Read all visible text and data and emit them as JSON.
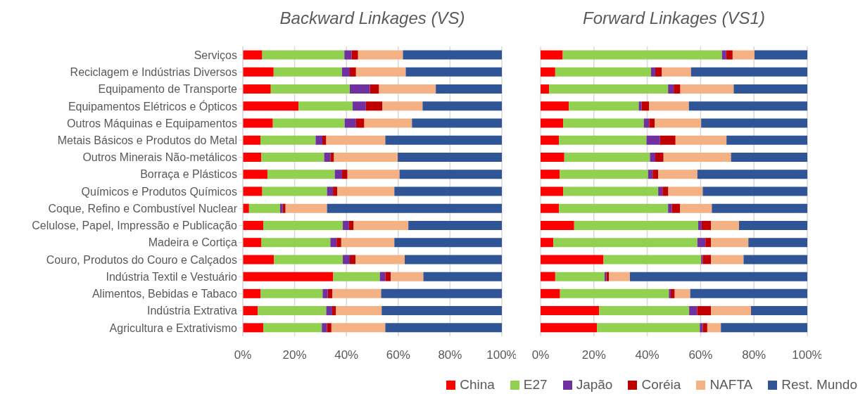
{
  "chart_data": [
    {
      "type": "bar",
      "orientation": "horizontal",
      "stacked": true,
      "title": "Backward Linkages (VS)",
      "categories": [
        "Serviços",
        "Reciclagem e Indústrias Diversos",
        "Equipamento de Transporte",
        "Equipamentos Elétricos e Ópticos",
        "Outros Máquinas e Equipamentos",
        "Metais Básicos e Produtos do Metal",
        "Outros Minerais Não-metálicos",
        "Borraça e Plásticos",
        "Químicos e Produtos Químicos",
        "Coque, Refino e Combustível Nuclear",
        "Celulose, Papel, Impressão e Publicação",
        "Madeira e Cortiça",
        "Couro, Produtos do Couro e Calçados",
        "Indústria Textil e Vestuário",
        "Alimentos, Bebidas e Tabaco",
        "Indústria Extrativa",
        "Agricultura e Extrativismo"
      ],
      "series": [
        {
          "name": "China",
          "color": "#ff0000",
          "values": [
            7.5,
            11.9,
            10.8,
            21.5,
            11.6,
            6.8,
            7.1,
            9.5,
            7.5,
            2.4,
            7.9,
            7.2,
            12,
            34.9,
            6.9,
            5.8,
            7.9
          ]
        },
        {
          "name": "E27",
          "color": "#92d050",
          "values": [
            31.7,
            26.4,
            30.5,
            20.9,
            27.7,
            21.3,
            24.3,
            26,
            25,
            12,
            30.7,
            26.6,
            26.6,
            18,
            23.9,
            26.4,
            22.6
          ]
        },
        {
          "name": "Japão",
          "color": "#7030a0",
          "values": [
            2.8,
            3,
            7.8,
            5.1,
            4.4,
            2.6,
            2.4,
            2.8,
            2.3,
            1,
            2.4,
            2.4,
            2.7,
            2.1,
            2,
            2.3,
            2
          ]
        },
        {
          "name": "Coréia",
          "color": "#c00000",
          "values": [
            2.5,
            2.4,
            3.5,
            6.4,
            3.2,
            1.5,
            1.4,
            2.1,
            1.7,
            1.1,
            1.8,
            1.8,
            2.2,
            2.1,
            1.8,
            1.5,
            1.7
          ]
        },
        {
          "name": "NAFTA",
          "color": "#f4b183",
          "values": [
            17.3,
            19.2,
            21.9,
            15.5,
            18.4,
            22.8,
            24.6,
            20.1,
            22,
            16,
            21.1,
            20.5,
            19,
            12.6,
            18.8,
            17.6,
            20.8
          ]
        },
        {
          "name": "Rest. Mundo",
          "color": "#2f5597",
          "values": [
            38.2,
            37.1,
            25.5,
            30.6,
            34.7,
            45,
            40.2,
            39.5,
            41.5,
            67.5,
            36.1,
            41.5,
            37.5,
            30.3,
            46.6,
            46.4,
            45
          ]
        }
      ],
      "xlim": [
        0,
        100
      ],
      "xticks": [
        {
          "value": 0,
          "label": "0%"
        },
        {
          "value": 20,
          "label": "20%"
        },
        {
          "value": 40,
          "label": "40%"
        },
        {
          "value": 60,
          "label": "60%"
        },
        {
          "value": 80,
          "label": "80%"
        },
        {
          "value": 100,
          "label": "100%"
        }
      ],
      "grid": "x",
      "legend": "bottom"
    },
    {
      "type": "bar",
      "orientation": "horizontal",
      "stacked": true,
      "title": "Forward Linkages (VS1)",
      "categories": [
        null,
        null,
        null,
        null,
        null,
        null,
        null,
        null,
        null,
        null,
        null,
        null,
        null,
        null,
        null,
        null,
        null
      ],
      "series": [
        {
          "color": "#ff0000",
          "values": [
            8.3,
            5.5,
            3.2,
            10.6,
            8.5,
            6.9,
            8.9,
            7.2,
            8.5,
            6.9,
            12.6,
            4.8,
            23.6,
            5.5,
            7.3,
            22,
            21.2
          ]
        },
        {
          "color": "#92d050",
          "values": [
            59.7,
            35.9,
            44.6,
            26.2,
            30.2,
            32.8,
            32.1,
            33.1,
            35.6,
            40.9,
            46.5,
            54,
            36.6,
            18.5,
            40.8,
            33.7,
            38.5
          ]
        },
        {
          "color": "#7030a0",
          "values": [
            1.6,
            1.6,
            2.1,
            1.1,
            2,
            5.1,
            2,
            1.7,
            1.6,
            1.4,
            1.3,
            3,
            0.6,
            0.7,
            0.7,
            3,
            1.1
          ]
        },
        {
          "color": "#c00000",
          "values": [
            2.4,
            2.5,
            2.5,
            2.8,
            2.1,
            5.8,
            3.1,
            2.1,
            2.2,
            3.1,
            3.5,
            2.1,
            3.1,
            0.9,
            1.5,
            5.2,
            1.7
          ]
        },
        {
          "color": "#f4b183",
          "values": [
            8.2,
            10.9,
            20,
            14.9,
            17.4,
            19.1,
            25.3,
            14.7,
            12.9,
            11.9,
            10.5,
            14,
            12.2,
            7.9,
            5.8,
            15,
            5.1
          ]
        },
        {
          "color": "#2f5597",
          "values": [
            19.8,
            43.6,
            27.6,
            44.4,
            39.8,
            30.3,
            28.6,
            41.2,
            39.2,
            35.8,
            25.6,
            22.1,
            23.9,
            66.5,
            43.9,
            21.1,
            32.4
          ]
        }
      ],
      "xlim": [
        0,
        100
      ],
      "xticks": [
        {
          "value": 0,
          "label": "0%"
        },
        {
          "value": 20,
          "label": "20%"
        },
        {
          "value": 40,
          "label": "40%"
        },
        {
          "value": 60,
          "label": "60%"
        },
        {
          "value": 80,
          "label": "80%"
        },
        {
          "value": 100,
          "label": "100%"
        }
      ],
      "grid": "x"
    }
  ]
}
